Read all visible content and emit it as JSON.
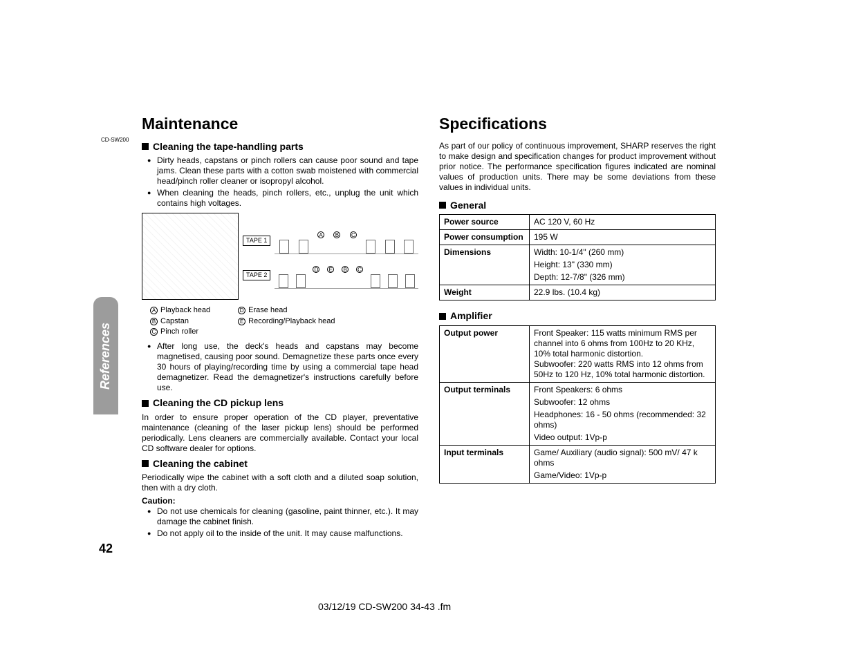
{
  "model_code": "CD-SW200",
  "side_tab": "References",
  "page_number": "42",
  "footer": "03/12/19    CD-SW200 34-43 .fm",
  "left": {
    "title": "Maintenance",
    "sec1": {
      "heading": "Cleaning the tape-handling parts",
      "b1": "Dirty heads, capstans or pinch rollers can cause poor sound and tape jams. Clean these parts with a cotton swab moistened with commercial head/pinch roller cleaner or isopropyl alcohol.",
      "b2": "When cleaning the heads, pinch rollers, etc., unplug the unit which contains high voltages."
    },
    "tape1": "TAPE 1",
    "tape2": "TAPE 2",
    "legend": {
      "a": "Playback head",
      "b": "Capstan",
      "c": "Pinch roller",
      "d": "Erase head",
      "e": "Recording/Playback head"
    },
    "b3": "After long use, the deck's heads and capstans may become magnetised, causing poor sound. Demagnetize these parts once every 30 hours of playing/recording time by using a commercial tape head demagnetizer. Read the demagnetizer's instructions carefully before use.",
    "sec2": {
      "heading": "Cleaning the CD pickup lens",
      "body": "In order to ensure proper operation of the CD player, preventative maintenance (cleaning of the laser pickup lens) should be performed periodically. Lens cleaners are commercially available. Contact your local CD software dealer for options."
    },
    "sec3": {
      "heading": "Cleaning the cabinet",
      "body": "Periodically wipe the cabinet with a soft cloth and a diluted soap solution, then with a dry cloth.",
      "caution": "Caution:",
      "c1": "Do not use chemicals for cleaning (gasoline, paint thinner, etc.). It may damage the cabinet finish.",
      "c2": "Do not apply oil to the inside of the unit. It may cause malfunctions."
    }
  },
  "right": {
    "title": "Specifications",
    "intro": "As part of our policy of continuous improvement, SHARP reserves the right to make design and specification changes for product improvement without prior notice. The performance specification figures indicated are nominal values of production units. There may be some deviations from these values in individual units.",
    "general": {
      "heading": "General",
      "rows": {
        "r0k": "Power source",
        "r0v": "AC 120 V, 60 Hz",
        "r1k": "Power consumption",
        "r1v": "195 W",
        "r2k": "Dimensions",
        "r2v1": "Width: 10-1/4\" (260 mm)",
        "r2v2": "Height: 13\" (330 mm)",
        "r2v3": "Depth: 12-7/8\" (326 mm)",
        "r3k": "Weight",
        "r3v": "22.9 lbs. (10.4 kg)"
      }
    },
    "amplifier": {
      "heading": "Amplifier",
      "rows": {
        "r0k": "Output power",
        "r0v": "Front Speaker: 115 watts minimum RMS per channel into 6 ohms from 100Hz to 20 KHz, 10% total harmonic distortion.\nSubwoofer:  220 watts RMS into 12 ohms from 50Hz to 120 Hz, 10% total harmonic distortion.",
        "r1k": "Output terminals",
        "r1v1": "Front Speakers: 6 ohms",
        "r1v2": "Subwoofer: 12 ohms",
        "r1v3": "Headphones: 16 - 50 ohms (recommended: 32 ohms)",
        "r1v4": "Video output: 1Vp-p",
        "r2k": "Input terminals",
        "r2v1": "Game/ Auxiliary (audio signal): 500 mV/ 47 k ohms",
        "r2v2": "Game/Video: 1Vp-p"
      }
    }
  }
}
